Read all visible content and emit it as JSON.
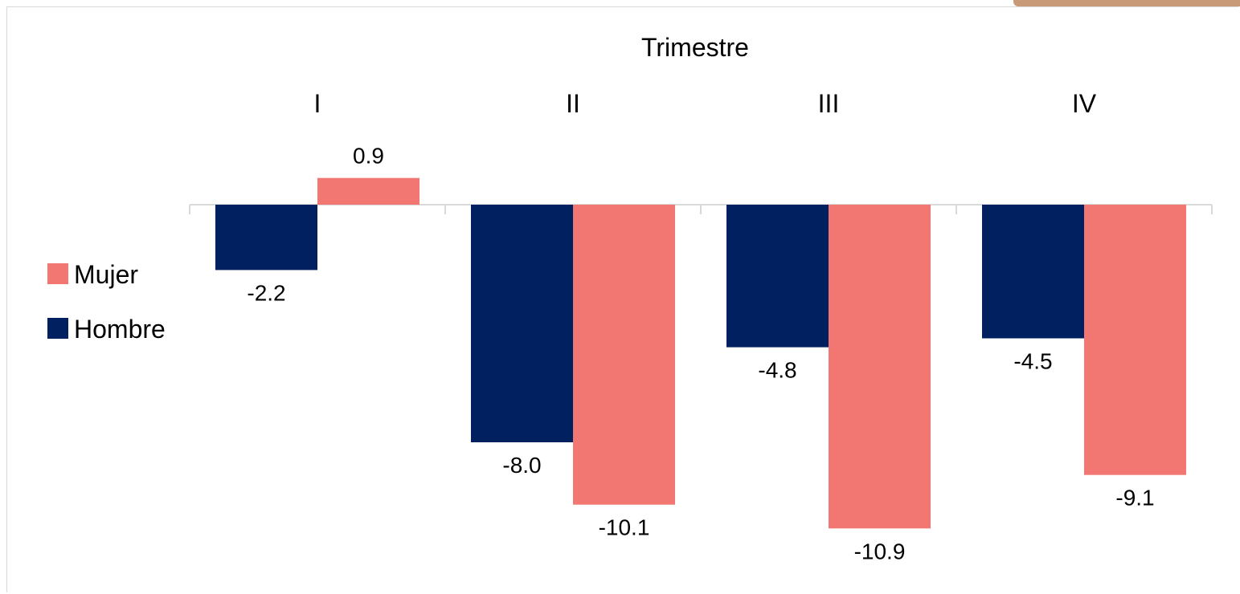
{
  "chart_data": {
    "type": "bar",
    "x_axis_title": "Trimestre",
    "categories": [
      "I",
      "II",
      "III",
      "IV"
    ],
    "series": [
      {
        "name": "Hombre",
        "color": "#002060",
        "values": [
          -2.2,
          -8.0,
          -4.8,
          -4.5
        ]
      },
      {
        "name": "Mujer",
        "color": "#F27772",
        "values": [
          0.9,
          -10.1,
          -10.9,
          -9.1
        ]
      }
    ],
    "data_labels": {
      "Hombre": [
        "-2.2",
        "-8.0",
        "-4.8",
        "-4.5"
      ],
      "Mujer": [
        "0.9",
        "-10.1",
        "-10.9",
        "-9.1"
      ]
    },
    "legend": {
      "position": "left",
      "items": [
        {
          "label": "Mujer",
          "color": "#F27772"
        },
        {
          "label": "Hombre",
          "color": "#002060"
        }
      ]
    },
    "axis_line_color": "#d9d9d9",
    "grid": false
  }
}
